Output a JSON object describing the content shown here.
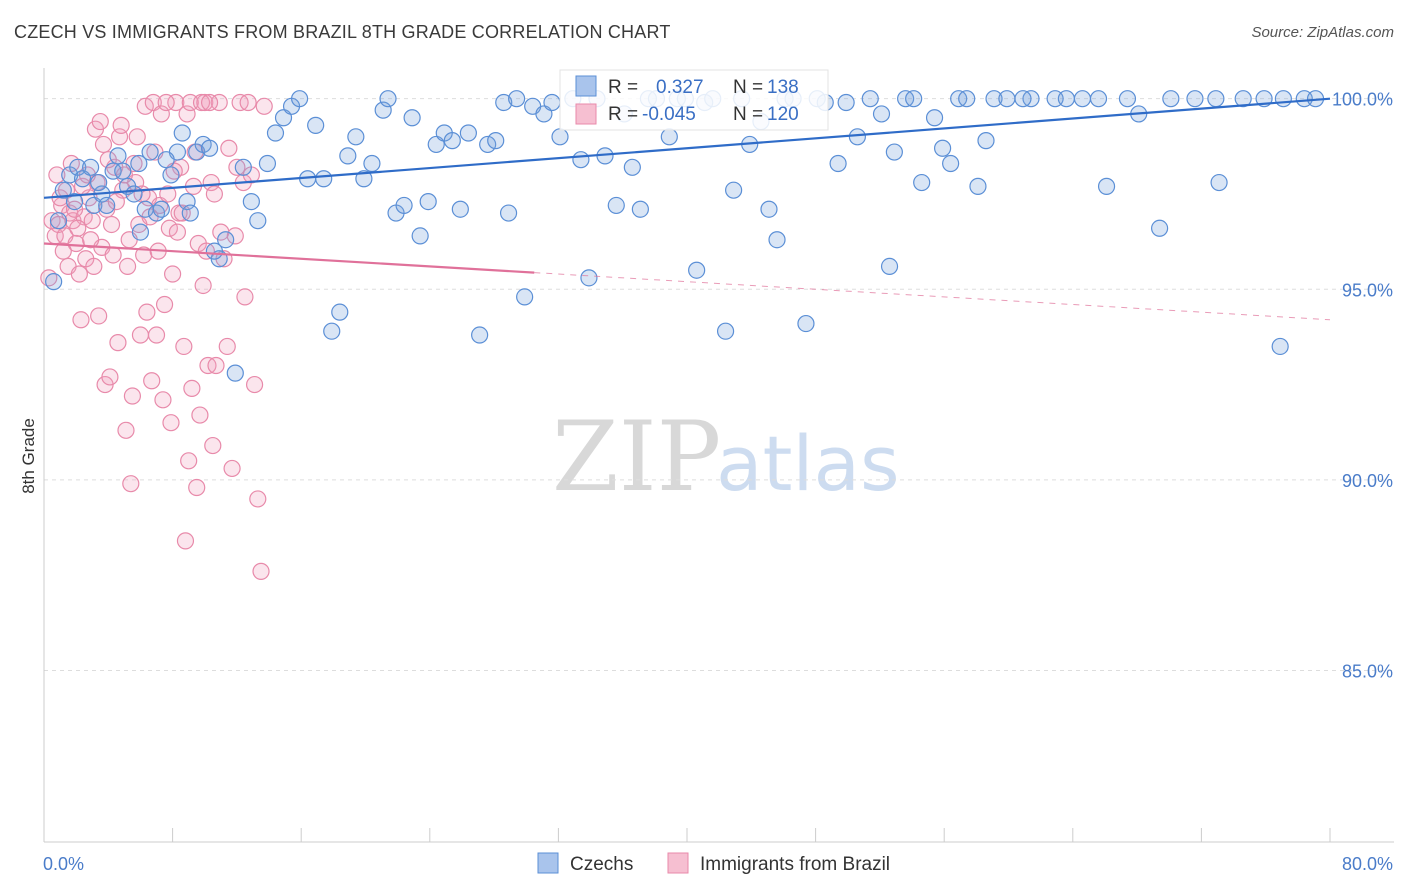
{
  "title": "CZECH VS IMMIGRANTS FROM BRAZIL 8TH GRADE CORRELATION CHART",
  "source": "Source: ZipAtlas.com",
  "watermark": {
    "zip": "ZIP",
    "atlas": "atlas"
  },
  "colors": {
    "blue": "#5b8fd6",
    "blue_fill": "rgba(120,160,220,0.28)",
    "blue_line": "#2f6cc8",
    "pink": "#e88aaa",
    "pink_fill": "rgba(240,160,190,0.28)",
    "pink_line": "#e0719a",
    "grid": "#dddddd"
  },
  "legend_top": {
    "rows": [
      {
        "r_label": "R =",
        "r_value": "0.327",
        "n_label": "N =",
        "n_value": "138"
      },
      {
        "r_label": "R =",
        "r_value": "-0.045",
        "n_label": "N =",
        "n_value": "120"
      }
    ]
  },
  "chart_data": {
    "type": "scatter",
    "title": "CZECH VS IMMIGRANTS FROM BRAZIL 8TH GRADE CORRELATION CHART",
    "xlabel": "",
    "ylabel": "8th Grade",
    "xlim": [
      0,
      80
    ],
    "ylim": [
      80.5,
      100.7
    ],
    "x_tick_labels": [
      "0.0%",
      "80.0%"
    ],
    "y_ticks": [
      85,
      90,
      95,
      100
    ],
    "y_tick_labels": [
      "85.0%",
      "90.0%",
      "95.0%",
      "100.0%"
    ],
    "x_minor_ticks": [
      0,
      8,
      16,
      24,
      32,
      40,
      48,
      56,
      64,
      72,
      80
    ],
    "series": [
      {
        "name": "Czechs",
        "color": "#5b8fd6",
        "R": 0.327,
        "N": 138,
        "trend": {
          "x": [
            0,
            80
          ],
          "y": [
            97.4,
            100.0
          ],
          "dashed_from": null
        },
        "points": [
          [
            1.2,
            97.6
          ],
          [
            1.6,
            98.0
          ],
          [
            2.1,
            98.2
          ],
          [
            2.4,
            97.9
          ],
          [
            2.9,
            98.2
          ],
          [
            3.1,
            97.2
          ],
          [
            3.6,
            97.5
          ],
          [
            3.9,
            97.2
          ],
          [
            4.3,
            98.1
          ],
          [
            4.6,
            98.5
          ],
          [
            4.9,
            98.1
          ],
          [
            5.2,
            97.7
          ],
          [
            5.6,
            97.5
          ],
          [
            6.0,
            96.5
          ],
          [
            6.3,
            97.1
          ],
          [
            6.6,
            98.6
          ],
          [
            7.0,
            97.0
          ],
          [
            7.3,
            97.1
          ],
          [
            7.9,
            98.0
          ],
          [
            8.3,
            98.6
          ],
          [
            8.6,
            99.1
          ],
          [
            8.9,
            97.3
          ],
          [
            9.5,
            98.6
          ],
          [
            9.9,
            98.8
          ],
          [
            10.3,
            98.7
          ],
          [
            10.9,
            95.8
          ],
          [
            11.3,
            96.3
          ],
          [
            11.9,
            92.8
          ],
          [
            12.4,
            98.2
          ],
          [
            12.9,
            97.3
          ],
          [
            13.3,
            96.8
          ],
          [
            13.9,
            98.3
          ],
          [
            14.4,
            99.1
          ],
          [
            14.9,
            99.5
          ],
          [
            15.4,
            99.8
          ],
          [
            15.9,
            100.0
          ],
          [
            16.4,
            97.9
          ],
          [
            16.9,
            99.3
          ],
          [
            17.4,
            97.9
          ],
          [
            17.9,
            93.9
          ],
          [
            18.4,
            94.4
          ],
          [
            18.9,
            98.5
          ],
          [
            19.4,
            99.0
          ],
          [
            19.9,
            97.9
          ],
          [
            20.4,
            98.3
          ],
          [
            21.1,
            99.7
          ],
          [
            21.9,
            97.0
          ],
          [
            22.4,
            97.2
          ],
          [
            22.9,
            99.5
          ],
          [
            23.4,
            96.4
          ],
          [
            23.9,
            97.3
          ],
          [
            24.4,
            98.8
          ],
          [
            24.9,
            99.1
          ],
          [
            25.4,
            98.9
          ],
          [
            25.9,
            97.1
          ],
          [
            26.4,
            99.1
          ],
          [
            27.1,
            93.8
          ],
          [
            27.6,
            98.8
          ],
          [
            28.1,
            98.9
          ],
          [
            28.6,
            99.9
          ],
          [
            29.4,
            100.0
          ],
          [
            29.9,
            94.8
          ],
          [
            30.4,
            99.8
          ],
          [
            31.1,
            99.6
          ],
          [
            31.6,
            99.9
          ],
          [
            32.1,
            99.0
          ],
          [
            32.9,
            100.0
          ],
          [
            33.4,
            98.4
          ],
          [
            33.9,
            95.3
          ],
          [
            34.4,
            100.0
          ],
          [
            34.9,
            98.5
          ],
          [
            35.6,
            97.2
          ],
          [
            36.1,
            99.6
          ],
          [
            36.6,
            98.2
          ],
          [
            37.1,
            97.1
          ],
          [
            37.6,
            100.0
          ],
          [
            38.1,
            100.0
          ],
          [
            38.9,
            99.0
          ],
          [
            39.4,
            100.0
          ],
          [
            39.9,
            100.0
          ],
          [
            40.6,
            95.5
          ],
          [
            41.1,
            99.9
          ],
          [
            41.6,
            100.0
          ],
          [
            42.4,
            93.9
          ],
          [
            42.9,
            97.6
          ],
          [
            43.4,
            100.0
          ],
          [
            43.9,
            98.8
          ],
          [
            44.6,
            99.4
          ],
          [
            45.1,
            97.1
          ],
          [
            45.6,
            96.3
          ],
          [
            46.1,
            100.0
          ],
          [
            46.6,
            100.0
          ],
          [
            47.4,
            94.1
          ],
          [
            48.1,
            100.0
          ],
          [
            48.6,
            99.9
          ],
          [
            49.4,
            98.3
          ],
          [
            49.9,
            99.9
          ],
          [
            50.6,
            99.0
          ],
          [
            51.4,
            100.0
          ],
          [
            52.1,
            99.6
          ],
          [
            52.9,
            98.6
          ],
          [
            53.6,
            100.0
          ],
          [
            54.1,
            100.0
          ],
          [
            54.6,
            97.8
          ],
          [
            55.4,
            99.5
          ],
          [
            55.9,
            98.7
          ],
          [
            56.4,
            98.3
          ],
          [
            56.9,
            100.0
          ],
          [
            57.4,
            100.0
          ],
          [
            58.1,
            97.7
          ],
          [
            58.6,
            98.9
          ],
          [
            59.1,
            100.0
          ],
          [
            59.9,
            100.0
          ],
          [
            61.4,
            100.0
          ],
          [
            62.9,
            100.0
          ],
          [
            64.6,
            100.0
          ],
          [
            65.6,
            100.0
          ],
          [
            66.1,
            97.7
          ],
          [
            68.1,
            99.6
          ],
          [
            69.4,
            96.6
          ],
          [
            70.1,
            100.0
          ],
          [
            71.6,
            100.0
          ],
          [
            72.9,
            100.0
          ],
          [
            74.6,
            100.0
          ],
          [
            75.9,
            100.0
          ],
          [
            77.1,
            100.0
          ],
          [
            78.4,
            100.0
          ],
          [
            79.1,
            100.0
          ],
          [
            60.9,
            100.0
          ],
          [
            63.6,
            100.0
          ],
          [
            67.4,
            100.0
          ],
          [
            73.1,
            97.8
          ],
          [
            76.9,
            93.5
          ],
          [
            52.6,
            95.6
          ],
          [
            28.9,
            97.0
          ],
          [
            21.4,
            100.0
          ],
          [
            7.6,
            98.4
          ],
          [
            9.1,
            97.0
          ],
          [
            10.6,
            96.0
          ],
          [
            5.9,
            98.3
          ],
          [
            3.4,
            97.8
          ],
          [
            1.9,
            97.3
          ],
          [
            0.6,
            95.2
          ],
          [
            0.9,
            96.8
          ]
        ]
      },
      {
        "name": "Immigrants from Brazil",
        "color": "#e88aaa",
        "R": -0.045,
        "N": 120,
        "trend": {
          "x": [
            0,
            80
          ],
          "y": [
            96.2,
            94.2
          ],
          "solid_until": 30.5
        },
        "points": [
          [
            0.3,
            95.3
          ],
          [
            0.5,
            96.8
          ],
          [
            0.7,
            96.4
          ],
          [
            0.9,
            96.7
          ],
          [
            1.1,
            97.2
          ],
          [
            1.3,
            96.4
          ],
          [
            1.5,
            95.6
          ],
          [
            1.6,
            97.0
          ],
          [
            1.8,
            96.8
          ],
          [
            2.0,
            96.2
          ],
          [
            2.2,
            95.4
          ],
          [
            2.3,
            94.2
          ],
          [
            2.5,
            96.9
          ],
          [
            2.6,
            95.8
          ],
          [
            2.8,
            97.4
          ],
          [
            3.0,
            96.8
          ],
          [
            3.1,
            95.6
          ],
          [
            3.3,
            97.8
          ],
          [
            3.4,
            94.3
          ],
          [
            3.6,
            96.1
          ],
          [
            3.8,
            92.5
          ],
          [
            3.9,
            97.1
          ],
          [
            4.1,
            92.7
          ],
          [
            4.3,
            95.9
          ],
          [
            4.4,
            98.2
          ],
          [
            4.6,
            93.6
          ],
          [
            4.7,
            99.0
          ],
          [
            4.9,
            97.6
          ],
          [
            5.1,
            91.3
          ],
          [
            5.2,
            95.6
          ],
          [
            5.4,
            89.9
          ],
          [
            5.5,
            92.2
          ],
          [
            5.7,
            97.8
          ],
          [
            5.9,
            96.7
          ],
          [
            6.0,
            93.8
          ],
          [
            6.2,
            95.9
          ],
          [
            6.4,
            94.4
          ],
          [
            6.5,
            97.4
          ],
          [
            6.7,
            92.6
          ],
          [
            6.9,
            98.6
          ],
          [
            7.0,
            93.8
          ],
          [
            7.2,
            97.2
          ],
          [
            7.4,
            92.1
          ],
          [
            7.5,
            94.6
          ],
          [
            7.7,
            97.5
          ],
          [
            7.9,
            91.5
          ],
          [
            8.0,
            95.4
          ],
          [
            8.2,
            99.9
          ],
          [
            8.4,
            97.0
          ],
          [
            8.5,
            98.2
          ],
          [
            8.7,
            93.5
          ],
          [
            8.9,
            99.6
          ],
          [
            9.0,
            90.5
          ],
          [
            9.2,
            92.4
          ],
          [
            9.4,
            98.6
          ],
          [
            9.5,
            89.8
          ],
          [
            9.7,
            91.7
          ],
          [
            9.9,
            95.1
          ],
          [
            10.0,
            99.9
          ],
          [
            10.2,
            93.0
          ],
          [
            10.4,
            97.8
          ],
          [
            10.5,
            90.9
          ],
          [
            10.7,
            93.0
          ],
          [
            10.9,
            99.9
          ],
          [
            11.0,
            96.5
          ],
          [
            11.2,
            95.8
          ],
          [
            11.4,
            93.5
          ],
          [
            11.5,
            98.7
          ],
          [
            11.7,
            90.3
          ],
          [
            11.9,
            96.4
          ],
          [
            12.0,
            98.2
          ],
          [
            12.2,
            99.9
          ],
          [
            12.4,
            97.8
          ],
          [
            12.5,
            94.8
          ],
          [
            12.7,
            99.9
          ],
          [
            12.9,
            98.0
          ],
          [
            13.1,
            92.5
          ],
          [
            13.3,
            89.5
          ],
          [
            13.5,
            87.6
          ],
          [
            13.7,
            99.8
          ],
          [
            0.8,
            98.0
          ],
          [
            1.0,
            97.4
          ],
          [
            1.2,
            96.0
          ],
          [
            1.4,
            97.6
          ],
          [
            1.7,
            98.3
          ],
          [
            1.9,
            97.1
          ],
          [
            2.1,
            96.6
          ],
          [
            2.4,
            97.7
          ],
          [
            2.7,
            98.0
          ],
          [
            2.9,
            96.3
          ],
          [
            3.2,
            99.2
          ],
          [
            3.5,
            99.4
          ],
          [
            3.7,
            98.8
          ],
          [
            4.0,
            98.4
          ],
          [
            4.2,
            96.7
          ],
          [
            4.5,
            97.3
          ],
          [
            4.8,
            99.3
          ],
          [
            5.0,
            98.0
          ],
          [
            5.3,
            96.3
          ],
          [
            5.6,
            98.3
          ],
          [
            5.8,
            99.0
          ],
          [
            6.1,
            97.5
          ],
          [
            6.3,
            99.8
          ],
          [
            6.6,
            96.9
          ],
          [
            6.8,
            99.9
          ],
          [
            7.1,
            96.0
          ],
          [
            7.3,
            99.6
          ],
          [
            7.6,
            99.9
          ],
          [
            7.8,
            96.6
          ],
          [
            8.1,
            98.1
          ],
          [
            8.3,
            96.5
          ],
          [
            8.6,
            97.0
          ],
          [
            8.8,
            88.4
          ],
          [
            9.1,
            99.9
          ],
          [
            9.3,
            97.7
          ],
          [
            9.6,
            96.2
          ],
          [
            9.8,
            99.9
          ],
          [
            10.1,
            96.0
          ],
          [
            10.3,
            99.9
          ],
          [
            10.6,
            97.5
          ]
        ]
      }
    ]
  },
  "legend_bottom": [
    {
      "label": "Czechs"
    },
    {
      "label": "Immigrants from Brazil"
    }
  ]
}
